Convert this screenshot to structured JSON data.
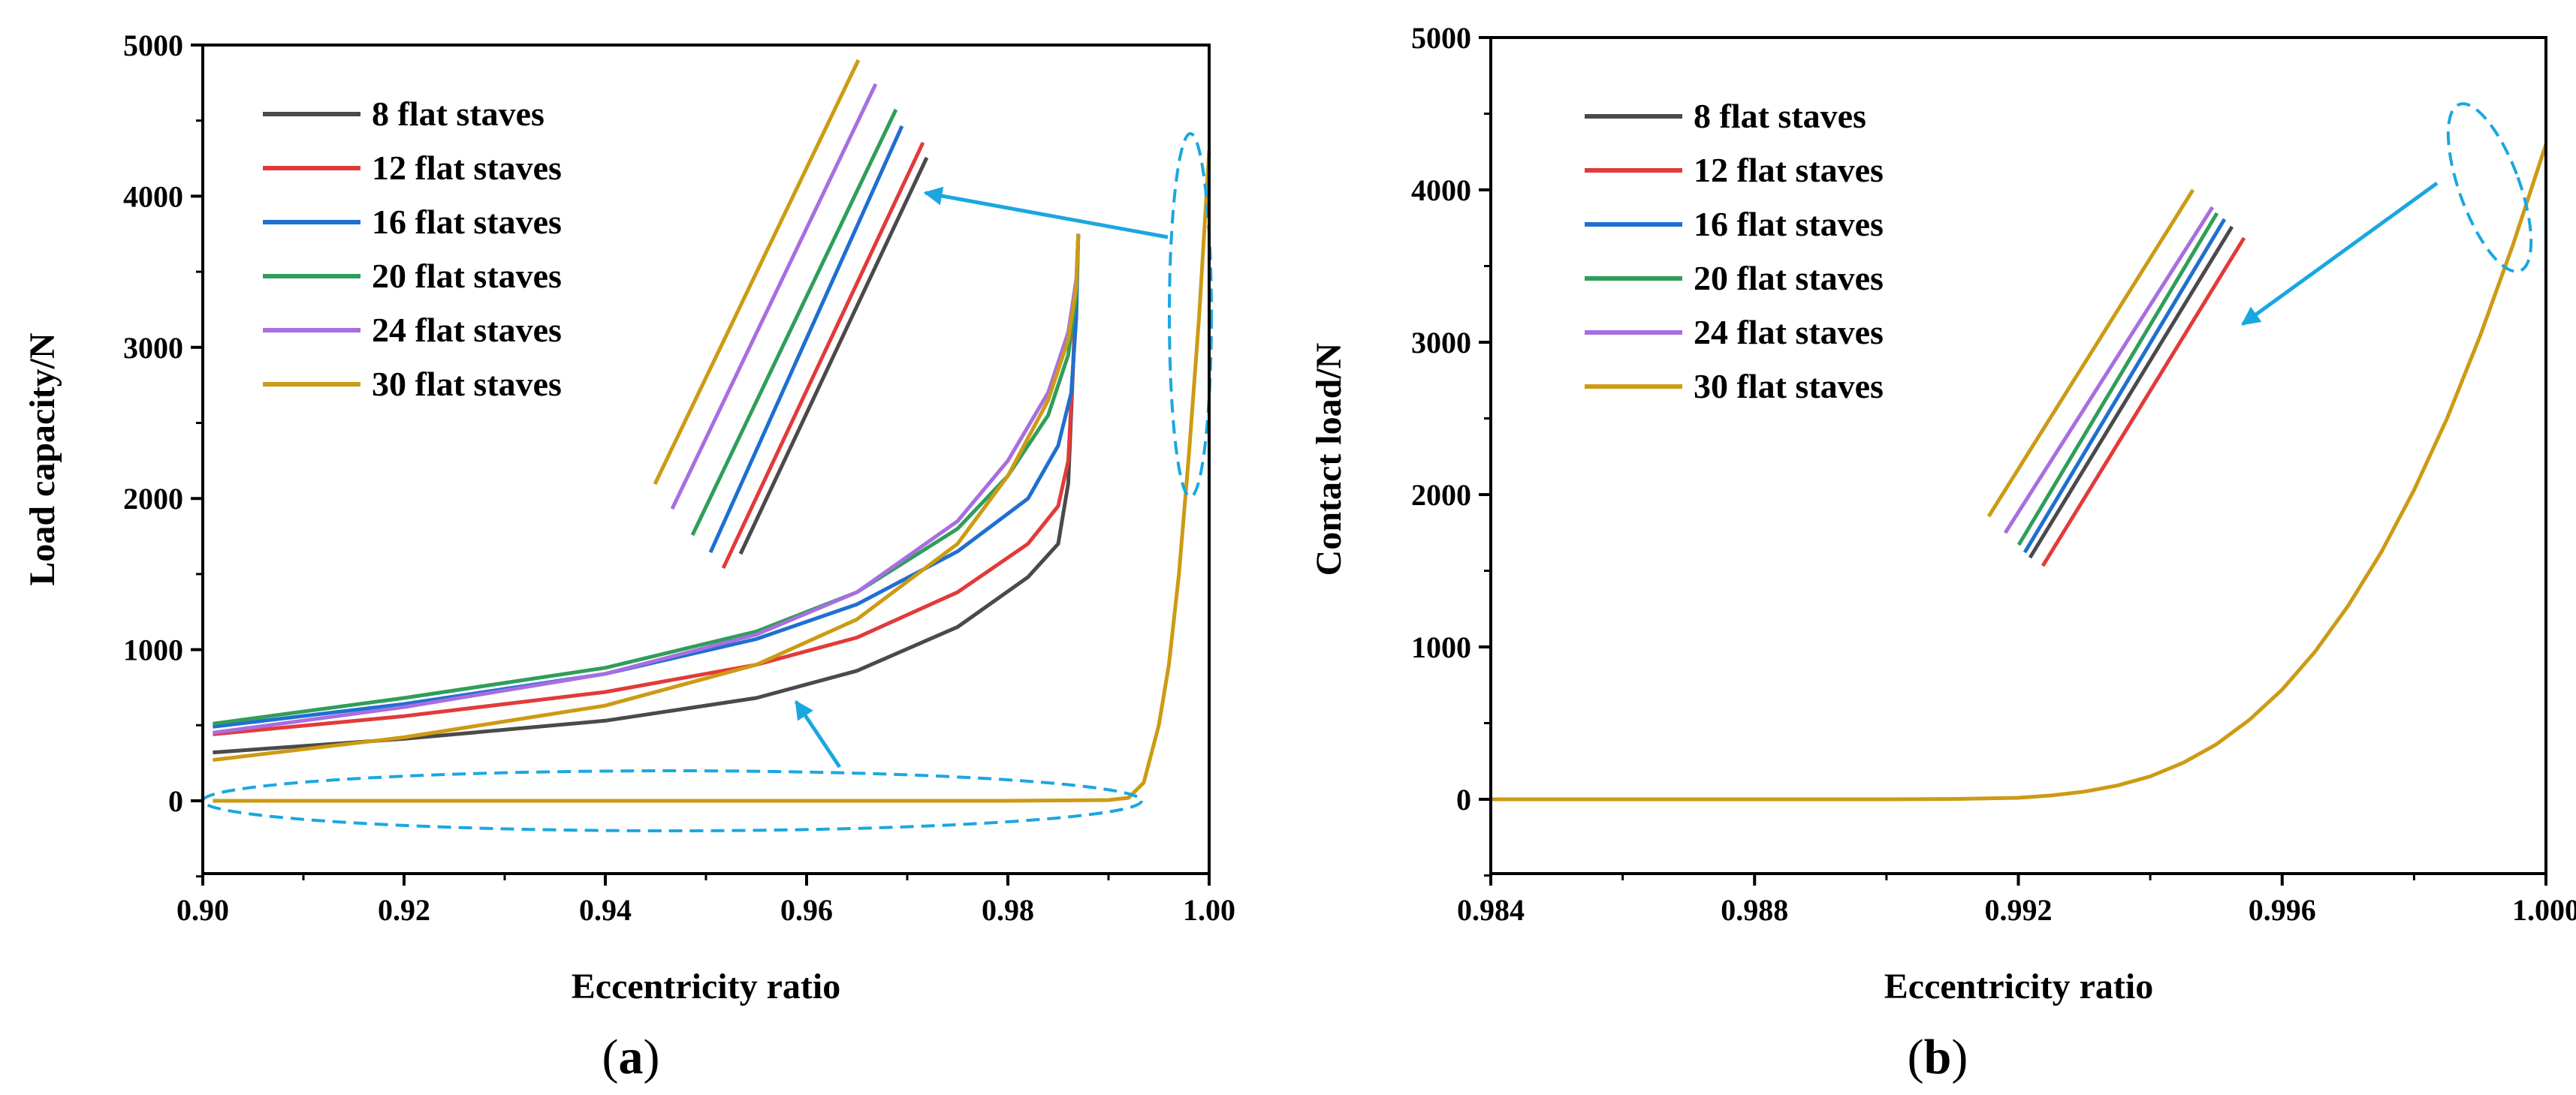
{
  "colors": {
    "8 flat staves": "#4a4a4a",
    "12 flat staves": "#e23a3a",
    "16 flat staves": "#1f6fd0",
    "20 flat staves": "#2f9e5a",
    "24 flat staves": "#a86ee0",
    "30 flat staves": "#cc9b14",
    "annotation": "#1aa7e0"
  },
  "chart_data": [
    {
      "type": "line",
      "panel_label": "a",
      "title": "",
      "xlabel": "Eccentricity ratio",
      "ylabel": "Load capacity/N",
      "xlim": [
        0.9,
        1.0
      ],
      "ylim": [
        -500,
        5000
      ],
      "xticks": [
        0.9,
        0.92,
        0.94,
        0.96,
        0.98,
        1.0
      ],
      "xtick_labels": [
        "0.90",
        "0.92",
        "0.94",
        "0.96",
        "0.98",
        "1.00"
      ],
      "yticks": [
        0,
        1000,
        2000,
        3000,
        4000,
        5000
      ],
      "ytick_labels": [
        "0",
        "1000",
        "2000",
        "3000",
        "4000",
        "5000"
      ],
      "legend": [
        "8 flat staves",
        "12 flat staves",
        "16 flat staves",
        "20 flat staves",
        "24 flat staves",
        "30 flat staves"
      ],
      "legend_position": "top-left",
      "series": [
        {
          "name": "8 flat staves",
          "x": [
            0.901,
            0.92,
            0.94,
            0.955,
            0.965,
            0.975,
            0.982,
            0.985,
            0.986,
            0.9865,
            0.987
          ],
          "y": [
            320,
            410,
            530,
            680,
            860,
            1150,
            1480,
            1700,
            2100,
            2900,
            3750
          ]
        },
        {
          "name": "12 flat staves",
          "x": [
            0.901,
            0.92,
            0.94,
            0.955,
            0.965,
            0.975,
            0.982,
            0.985,
            0.986,
            0.9865,
            0.987
          ],
          "y": [
            440,
            560,
            720,
            900,
            1080,
            1380,
            1700,
            1950,
            2250,
            2900,
            3750
          ]
        },
        {
          "name": "16 flat staves",
          "x": [
            0.901,
            0.92,
            0.94,
            0.955,
            0.965,
            0.975,
            0.982,
            0.985,
            0.9863,
            0.9868,
            0.987
          ],
          "y": [
            490,
            640,
            840,
            1070,
            1300,
            1650,
            2000,
            2350,
            2700,
            3200,
            3750
          ]
        },
        {
          "name": "20 flat staves",
          "x": [
            0.901,
            0.92,
            0.94,
            0.955,
            0.965,
            0.975,
            0.98,
            0.984,
            0.986,
            0.9868,
            0.987
          ],
          "y": [
            510,
            680,
            880,
            1120,
            1380,
            1800,
            2150,
            2550,
            2950,
            3350,
            3750
          ]
        },
        {
          "name": "24 flat staves",
          "x": [
            0.901,
            0.92,
            0.94,
            0.955,
            0.965,
            0.975,
            0.98,
            0.984,
            0.986,
            0.9868,
            0.987
          ],
          "y": [
            450,
            620,
            840,
            1100,
            1380,
            1850,
            2250,
            2700,
            3100,
            3450,
            3750
          ]
        },
        {
          "name": "30 flat staves",
          "x": [
            0.901,
            0.92,
            0.94,
            0.955,
            0.965,
            0.975,
            0.98,
            0.984,
            0.986,
            0.9868,
            0.987
          ],
          "y": [
            270,
            420,
            630,
            900,
            1200,
            1700,
            2150,
            2650,
            3050,
            3400,
            3750
          ]
        },
        {
          "name": "contact load",
          "x": [
            0.901,
            0.95,
            0.98,
            0.99,
            0.992,
            0.9935,
            0.995,
            0.996,
            0.997,
            0.998,
            0.999,
            1.0
          ],
          "y": [
            0,
            0,
            0,
            5,
            20,
            120,
            500,
            900,
            1500,
            2300,
            3200,
            4300
          ]
        }
      ],
      "annotations": [
        "highlighted region near eccentricity 1.00 (magnified inset)",
        "highlighted low-load region along y = 0"
      ]
    },
    {
      "type": "line",
      "panel_label": "b",
      "title": "",
      "xlabel": "Eccentricity ratio",
      "ylabel": "Contact load/N",
      "xlim": [
        0.984,
        1.0
      ],
      "ylim": [
        -500,
        5000
      ],
      "xticks": [
        0.984,
        0.988,
        0.992,
        0.996,
        1.0
      ],
      "xtick_labels": [
        "0.984",
        "0.988",
        "0.992",
        "0.996",
        "1.000"
      ],
      "yticks": [
        0,
        1000,
        2000,
        3000,
        4000,
        5000
      ],
      "ytick_labels": [
        "0",
        "1000",
        "2000",
        "3000",
        "4000",
        "5000"
      ],
      "legend": [
        "8 flat staves",
        "12 flat staves",
        "16 flat staves",
        "20 flat staves",
        "24 flat staves",
        "30 flat staves"
      ],
      "legend_position": "top-left",
      "series": [
        {
          "name": "30 flat staves",
          "x": [
            0.984,
            0.988,
            0.99,
            0.991,
            0.992,
            0.9925,
            0.993,
            0.9935,
            0.994,
            0.9945,
            0.995,
            0.9955,
            0.996,
            0.9965,
            0.997,
            0.9975,
            0.998,
            0.9985,
            0.999,
            0.9995,
            1.0
          ],
          "y": [
            0,
            0,
            0,
            2,
            10,
            25,
            50,
            90,
            150,
            240,
            360,
            520,
            720,
            970,
            1270,
            1620,
            2030,
            2500,
            3040,
            3640,
            4300
          ]
        }
      ],
      "annotations": [
        "highlighted end region near eccentricity 1.000 (magnified inset)"
      ]
    }
  ]
}
